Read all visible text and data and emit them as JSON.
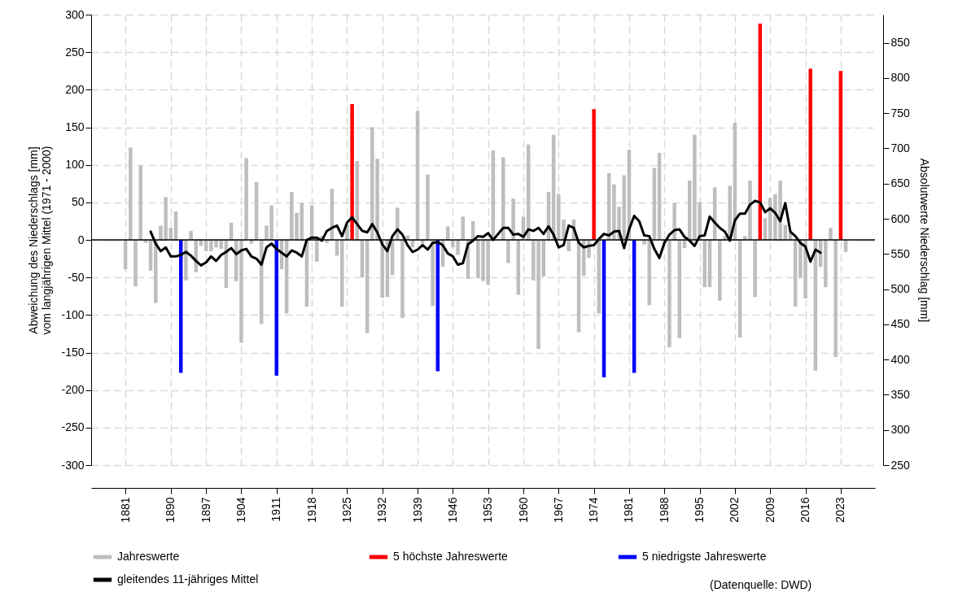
{
  "chart_data": {
    "type": "bar",
    "ylabel": "Abweichung des Niederschlags [mm]\nvom langjährigen Mittel (1971 - 2000)",
    "y2label": "Absolutwerte Niederschlag [mm]",
    "xlim": [
      1875,
      2029
    ],
    "xticks": [
      1881,
      1890,
      1897,
      1904,
      1911,
      1918,
      1925,
      1932,
      1939,
      1946,
      1953,
      1960,
      1967,
      1974,
      1981,
      1988,
      1995,
      2002,
      2009,
      2016,
      2023
    ],
    "ylim": [
      -300,
      300
    ],
    "yticks": [
      -300,
      -250,
      -200,
      -150,
      -100,
      -50,
      0,
      50,
      100,
      150,
      200,
      250,
      300
    ],
    "y2lim": [
      250,
      890
    ],
    "y2ticks": [
      250,
      300,
      350,
      400,
      450,
      500,
      550,
      600,
      650,
      700,
      750,
      800,
      850
    ],
    "grid": true,
    "legend": "bottom",
    "x": [
      1881,
      1882,
      1883,
      1884,
      1885,
      1886,
      1887,
      1888,
      1889,
      1890,
      1891,
      1893,
      1894,
      1895,
      1896,
      1897,
      1898,
      1899,
      1900,
      1901,
      1902,
      1903,
      1904,
      1905,
      1906,
      1907,
      1908,
      1909,
      1910,
      1912,
      1913,
      1914,
      1915,
      1916,
      1917,
      1918,
      1919,
      1920,
      1921,
      1922,
      1923,
      1924,
      1925,
      1927,
      1928,
      1929,
      1930,
      1931,
      1932,
      1933,
      1934,
      1935,
      1936,
      1937,
      1938,
      1939,
      1940,
      1941,
      1942,
      1944,
      1945,
      1946,
      1947,
      1948,
      1949,
      1950,
      1951,
      1952,
      1953,
      1954,
      1956,
      1957,
      1958,
      1959,
      1960,
      1961,
      1962,
      1963,
      1964,
      1965,
      1966,
      1967,
      1968,
      1969,
      1970,
      1971,
      1972,
      1973,
      1975,
      1977,
      1978,
      1979,
      1980,
      1981,
      1984,
      1985,
      1986,
      1987,
      1988,
      1989,
      1990,
      1991,
      1992,
      1993,
      1994,
      1995,
      1996,
      1997,
      1998,
      1999,
      2000,
      2001,
      2002,
      2003,
      2004,
      2005,
      2006,
      2008,
      2009,
      2010,
      2011,
      2012,
      2013,
      2014,
      2015,
      2016,
      2018,
      2019,
      2020,
      2021,
      2022,
      2024
    ],
    "series": [
      {
        "name": "Jahreswerte",
        "color": "#bebebe",
        "values": [
          -39,
          123,
          -62,
          99,
          -4,
          -41,
          -84,
          19,
          57,
          16,
          38,
          -54,
          12,
          -43,
          -8,
          -15,
          -15,
          -10,
          -12,
          -64,
          23,
          -55,
          -137,
          109,
          -5,
          77,
          -112,
          19,
          46,
          -39,
          -98,
          64,
          36,
          49,
          -89,
          46,
          -29,
          5,
          -4,
          68,
          -21,
          -89,
          20,
          105,
          -50,
          -124,
          150,
          108,
          -77,
          -76,
          -47,
          43,
          -104,
          6,
          -10,
          172,
          -5,
          87,
          -88,
          -36,
          18,
          -10,
          -20,
          31,
          -52,
          25,
          -51,
          -55,
          -60,
          119,
          110,
          -31,
          55,
          -73,
          31,
          127,
          -54,
          -145,
          -49,
          64,
          140,
          61,
          27,
          -15,
          27,
          -123,
          -48,
          -24,
          -98,
          89,
          74,
          44,
          86,
          120,
          -6,
          -87,
          96,
          116,
          -5,
          -143,
          49,
          -131,
          -11,
          79,
          140,
          50,
          -63,
          -63,
          70,
          -81,
          5,
          72,
          156,
          -130,
          5,
          79,
          -76,
          29,
          56,
          61,
          79,
          20,
          10,
          -89,
          -50,
          -78,
          -174,
          -36,
          -63,
          16,
          -156,
          -16
        ]
      },
      {
        "name": "5 höchste Jahreswerte",
        "color": "#ff0000",
        "x": [
          1926,
          1974,
          2007,
          2017,
          2023
        ],
        "values": [
          181,
          174,
          288,
          228,
          225
        ]
      },
      {
        "name": "5 niedrigste Jahreswerte",
        "color": "#0000ff",
        "x": [
          1892,
          1911,
          1943,
          1976,
          1982
        ],
        "values": [
          -177,
          -181,
          -175,
          -183,
          -177
        ]
      },
      {
        "name": "gleitendes 11-jähriges Mittel",
        "color": "#000000",
        "type": "line",
        "x": [
          1886,
          1887,
          1888,
          1889,
          1890,
          1891,
          1892,
          1893,
          1894,
          1895,
          1896,
          1897,
          1898,
          1899,
          1900,
          1901,
          1902,
          1903,
          1904,
          1905,
          1906,
          1907,
          1908,
          1909,
          1910,
          1911,
          1912,
          1913,
          1914,
          1915,
          1916,
          1917,
          1918,
          1919,
          1920,
          1921,
          1922,
          1923,
          1924,
          1925,
          1926,
          1927,
          1928,
          1929,
          1930,
          1931,
          1932,
          1933,
          1934,
          1935,
          1936,
          1937,
          1938,
          1939,
          1940,
          1941,
          1942,
          1943,
          1944,
          1945,
          1946,
          1947,
          1948,
          1949,
          1950,
          1951,
          1952,
          1953,
          1954,
          1955,
          1956,
          1957,
          1958,
          1959,
          1960,
          1961,
          1962,
          1963,
          1964,
          1965,
          1966,
          1967,
          1968,
          1969,
          1970,
          1971,
          1972,
          1973,
          1974,
          1975,
          1976,
          1977,
          1978,
          1979,
          1980,
          1981,
          1982,
          1983,
          1984,
          1985,
          1986,
          1987,
          1988,
          1989,
          1990,
          1991,
          1992,
          1993,
          1994,
          1995,
          1996,
          1997,
          1998,
          1999,
          2000,
          2001,
          2002,
          2003,
          2004,
          2005,
          2006,
          2007,
          2008,
          2009,
          2010,
          2011,
          2012,
          2013,
          2014,
          2015,
          2016,
          2017,
          2018,
          2019
        ],
        "values": [
          11,
          -5,
          -15,
          -10,
          -22,
          -22,
          -20,
          -16,
          -21,
          -28,
          -34,
          -30,
          -22,
          -28,
          -20,
          -16,
          -11,
          -19,
          -14,
          -12,
          -22,
          -25,
          -33,
          -10,
          -5,
          -12,
          -17,
          -22,
          -14,
          -17,
          -22,
          0,
          3,
          3,
          -1,
          12,
          16,
          19,
          5,
          23,
          30,
          21,
          12,
          10,
          21,
          10,
          -6,
          -15,
          5,
          14,
          7,
          -7,
          -16,
          -13,
          -7,
          -13,
          -4,
          -3,
          -7,
          -18,
          -22,
          -33,
          -31,
          -6,
          -1,
          5,
          4,
          9,
          0,
          8,
          16,
          16,
          7,
          8,
          4,
          14,
          12,
          16,
          8,
          18,
          7,
          -10,
          -7,
          19,
          16,
          -4,
          -10,
          -8,
          -7,
          1,
          8,
          6,
          11,
          12,
          -11,
          14,
          32,
          25,
          6,
          5,
          -12,
          -24,
          -4,
          7,
          13,
          14,
          4,
          -1,
          -8,
          5,
          6,
          31,
          23,
          16,
          11,
          -1,
          26,
          35,
          35,
          47,
          52,
          50,
          37,
          42,
          36,
          25,
          49,
          11,
          5,
          -4,
          -9,
          -29,
          -13,
          -17
        ]
      }
    ],
    "ref_lines": [
      {
        "axis": "y",
        "value": 0,
        "color": "#000000"
      }
    ],
    "annotations": [
      "(Datenquelle: DWD)"
    ]
  }
}
